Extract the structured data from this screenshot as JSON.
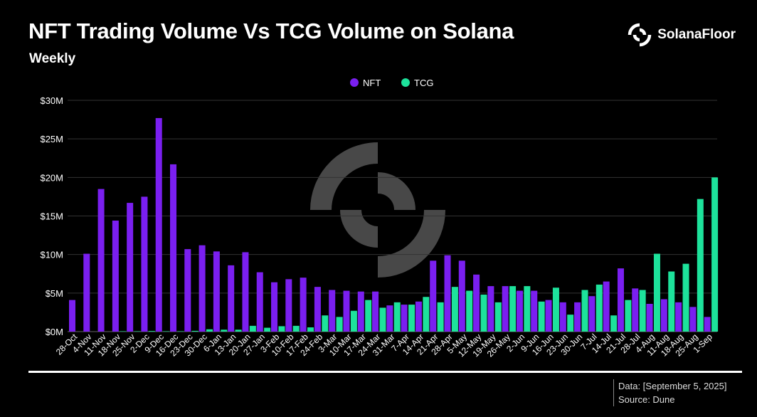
{
  "header": {
    "title": "NFT Trading Volume Vs TCG Volume on Solana",
    "subtitle": "Weekly",
    "brand": "SolanaFloor"
  },
  "footer": {
    "data_note": "Data: [September 5, 2025]",
    "source": "Source: Dune"
  },
  "colors": {
    "nft": "#7a1ff0",
    "tcg": "#1de29b",
    "background": "#000000",
    "grid": "#333333"
  },
  "chart_data": {
    "type": "bar",
    "title": "NFT Trading Volume Vs TCG Volume on Solana",
    "subtitle": "Weekly",
    "legend_position": "top-center",
    "grid": true,
    "ylim": [
      0,
      30
    ],
    "yticks": [
      0,
      5,
      10,
      15,
      20,
      25,
      30
    ],
    "ytick_labels": [
      "$0M",
      "$5M",
      "$10M",
      "$15M",
      "$20M",
      "$25M",
      "$30M"
    ],
    "categories": [
      "28-Oct",
      "4-Nov",
      "11-Nov",
      "18-Nov",
      "25-Nov",
      "2-Dec",
      "9-Dec",
      "16-Dec",
      "23-Dec",
      "30-Dec",
      "6-Jan",
      "13-Jan",
      "20-Jan",
      "27-Jan",
      "3-Feb",
      "10-Feb",
      "17-Feb",
      "24-Feb",
      "3-Mar",
      "10-Mar",
      "17-Mar",
      "24-Mar",
      "31-Mar",
      "7-Apr",
      "14-Apr",
      "21-Apr",
      "28-Apr",
      "5-May",
      "12-May",
      "19-May",
      "26-May",
      "2-Jun",
      "9-Jun",
      "16-Jun",
      "23-Jun",
      "30-Jun",
      "7-Jul",
      "14-Jul",
      "21-Jul",
      "28-Jul",
      "4-Aug",
      "11-Aug",
      "18-Aug",
      "25-Aug",
      "1-Sep"
    ],
    "series": [
      {
        "name": "NFT",
        "values": [
          4.1,
          10.1,
          18.5,
          14.4,
          16.7,
          17.5,
          27.7,
          21.7,
          10.7,
          11.2,
          10.4,
          8.6,
          10.3,
          7.7,
          6.4,
          6.8,
          7.0,
          5.8,
          5.4,
          5.3,
          5.2,
          5.2,
          3.4,
          3.5,
          3.9,
          9.2,
          9.9,
          9.2,
          7.4,
          5.9,
          5.9,
          5.3,
          5.3,
          4.1,
          3.8,
          3.8,
          4.6,
          6.5,
          8.2,
          5.6,
          3.6,
          4.2,
          3.8,
          3.2,
          1.9
        ]
      },
      {
        "name": "TCG",
        "values": [
          0,
          0,
          0,
          0.05,
          0.05,
          0.08,
          0.05,
          0.05,
          0.1,
          0.3,
          0.25,
          0.25,
          0.75,
          0.5,
          0.7,
          0.75,
          0.55,
          2.1,
          1.9,
          2.7,
          4.1,
          3.1,
          3.8,
          3.5,
          4.5,
          3.8,
          5.8,
          5.3,
          4.8,
          3.8,
          5.9,
          5.9,
          3.9,
          5.7,
          2.2,
          5.4,
          6.1,
          2.1,
          4.1,
          5.4,
          10.1,
          7.8,
          8.8,
          17.2,
          20.0
        ]
      }
    ]
  }
}
